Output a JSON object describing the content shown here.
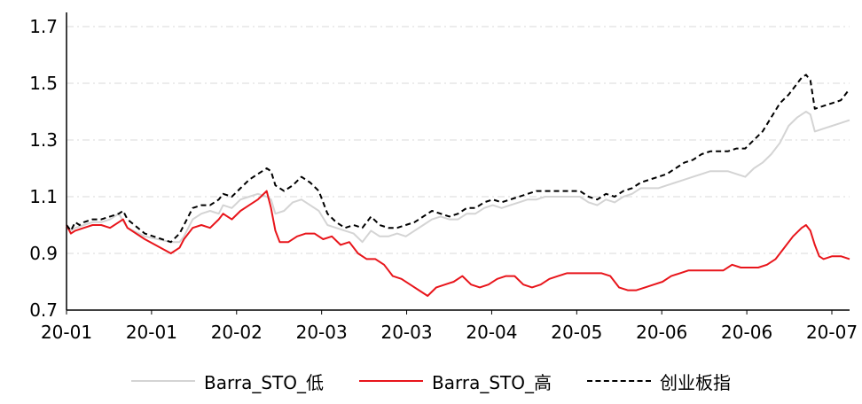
{
  "chart_data": {
    "type": "line",
    "title": "",
    "xlabel": "",
    "ylabel": "",
    "ylim": [
      0.7,
      1.75
    ],
    "yticks": [
      "0.7",
      "0.9",
      "1.1",
      "1.3",
      "1.5",
      "1.7"
    ],
    "xtick_labels": [
      "20-01",
      "20-01",
      "20-02",
      "20-03",
      "20-03",
      "20-04",
      "20-05",
      "20-06",
      "20-06",
      "20-07"
    ],
    "grid": "horizontal dash-dot",
    "legend_position": "bottom",
    "series": [
      {
        "name": "Barra_STO_低",
        "color": "#d4d4d4",
        "dash": "solid",
        "points": [
          [
            0,
            1.0
          ],
          [
            1,
            0.98
          ],
          [
            2,
            0.99
          ],
          [
            4,
            1.0
          ],
          [
            6,
            1.01
          ],
          [
            8,
            1.01
          ],
          [
            10,
            1.02
          ],
          [
            12,
            1.04
          ],
          [
            14,
            0.99
          ],
          [
            18,
            0.96
          ],
          [
            24,
            0.94
          ],
          [
            26,
            0.94
          ],
          [
            27,
            0.96
          ],
          [
            29,
            1.02
          ],
          [
            31,
            1.04
          ],
          [
            33,
            1.05
          ],
          [
            35,
            1.04
          ],
          [
            36,
            1.07
          ],
          [
            38,
            1.06
          ],
          [
            40,
            1.09
          ],
          [
            42,
            1.1
          ],
          [
            44,
            1.11
          ],
          [
            46,
            1.1
          ],
          [
            47,
            1.09
          ],
          [
            48,
            1.04
          ],
          [
            50,
            1.05
          ],
          [
            52,
            1.08
          ],
          [
            54,
            1.09
          ],
          [
            56,
            1.07
          ],
          [
            58,
            1.05
          ],
          [
            60,
            1.0
          ],
          [
            62,
            0.99
          ],
          [
            64,
            0.98
          ],
          [
            66,
            0.97
          ],
          [
            68,
            0.94
          ],
          [
            70,
            0.98
          ],
          [
            72,
            0.96
          ],
          [
            74,
            0.96
          ],
          [
            76,
            0.97
          ],
          [
            78,
            0.96
          ],
          [
            80,
            0.98
          ],
          [
            82,
            1.0
          ],
          [
            84,
            1.02
          ],
          [
            86,
            1.03
          ],
          [
            88,
            1.02
          ],
          [
            90,
            1.02
          ],
          [
            92,
            1.04
          ],
          [
            94,
            1.04
          ],
          [
            96,
            1.06
          ],
          [
            98,
            1.07
          ],
          [
            100,
            1.06
          ],
          [
            102,
            1.07
          ],
          [
            104,
            1.08
          ],
          [
            106,
            1.09
          ],
          [
            108,
            1.09
          ],
          [
            110,
            1.1
          ],
          [
            112,
            1.1
          ],
          [
            114,
            1.1
          ],
          [
            116,
            1.1
          ],
          [
            118,
            1.1
          ],
          [
            120,
            1.08
          ],
          [
            122,
            1.07
          ],
          [
            124,
            1.09
          ],
          [
            126,
            1.08
          ],
          [
            128,
            1.1
          ],
          [
            130,
            1.11
          ],
          [
            132,
            1.13
          ],
          [
            134,
            1.13
          ],
          [
            136,
            1.13
          ],
          [
            138,
            1.14
          ],
          [
            140,
            1.15
          ],
          [
            142,
            1.16
          ],
          [
            144,
            1.17
          ],
          [
            146,
            1.18
          ],
          [
            148,
            1.19
          ],
          [
            150,
            1.19
          ],
          [
            152,
            1.19
          ],
          [
            154,
            1.18
          ],
          [
            156,
            1.17
          ],
          [
            158,
            1.2
          ],
          [
            160,
            1.22
          ],
          [
            162,
            1.25
          ],
          [
            164,
            1.29
          ],
          [
            166,
            1.35
          ],
          [
            168,
            1.38
          ],
          [
            169,
            1.39
          ],
          [
            170,
            1.4
          ],
          [
            171,
            1.39
          ],
          [
            172,
            1.33
          ],
          [
            174,
            1.34
          ],
          [
            176,
            1.35
          ],
          [
            178,
            1.36
          ],
          [
            180,
            1.37
          ]
        ]
      },
      {
        "name": "Barra_STO_高",
        "color": "#e8151b",
        "dash": "solid",
        "points": [
          [
            0,
            1.0
          ],
          [
            1,
            0.97
          ],
          [
            2,
            0.98
          ],
          [
            4,
            0.99
          ],
          [
            6,
            1.0
          ],
          [
            8,
            1.0
          ],
          [
            10,
            0.99
          ],
          [
            12,
            1.01
          ],
          [
            13,
            1.02
          ],
          [
            14,
            0.99
          ],
          [
            18,
            0.95
          ],
          [
            24,
            0.9
          ],
          [
            26,
            0.92
          ],
          [
            27,
            0.95
          ],
          [
            29,
            0.99
          ],
          [
            31,
            1.0
          ],
          [
            33,
            0.99
          ],
          [
            35,
            1.02
          ],
          [
            36,
            1.04
          ],
          [
            38,
            1.02
          ],
          [
            40,
            1.05
          ],
          [
            42,
            1.07
          ],
          [
            44,
            1.09
          ],
          [
            46,
            1.12
          ],
          [
            47,
            1.06
          ],
          [
            48,
            0.98
          ],
          [
            49,
            0.94
          ],
          [
            51,
            0.94
          ],
          [
            53,
            0.96
          ],
          [
            55,
            0.97
          ],
          [
            57,
            0.97
          ],
          [
            59,
            0.95
          ],
          [
            61,
            0.96
          ],
          [
            63,
            0.93
          ],
          [
            65,
            0.94
          ],
          [
            67,
            0.9
          ],
          [
            69,
            0.88
          ],
          [
            71,
            0.88
          ],
          [
            73,
            0.86
          ],
          [
            74,
            0.84
          ],
          [
            75,
            0.82
          ],
          [
            77,
            0.81
          ],
          [
            79,
            0.79
          ],
          [
            81,
            0.77
          ],
          [
            83,
            0.75
          ],
          [
            85,
            0.78
          ],
          [
            87,
            0.79
          ],
          [
            89,
            0.8
          ],
          [
            91,
            0.82
          ],
          [
            93,
            0.79
          ],
          [
            95,
            0.78
          ],
          [
            97,
            0.79
          ],
          [
            99,
            0.81
          ],
          [
            101,
            0.82
          ],
          [
            103,
            0.82
          ],
          [
            105,
            0.79
          ],
          [
            107,
            0.78
          ],
          [
            109,
            0.79
          ],
          [
            111,
            0.81
          ],
          [
            113,
            0.82
          ],
          [
            115,
            0.83
          ],
          [
            117,
            0.83
          ],
          [
            119,
            0.83
          ],
          [
            121,
            0.83
          ],
          [
            123,
            0.83
          ],
          [
            125,
            0.82
          ],
          [
            127,
            0.78
          ],
          [
            129,
            0.77
          ],
          [
            131,
            0.77
          ],
          [
            133,
            0.78
          ],
          [
            135,
            0.79
          ],
          [
            137,
            0.8
          ],
          [
            139,
            0.82
          ],
          [
            141,
            0.83
          ],
          [
            143,
            0.84
          ],
          [
            145,
            0.84
          ],
          [
            147,
            0.84
          ],
          [
            149,
            0.84
          ],
          [
            151,
            0.84
          ],
          [
            153,
            0.86
          ],
          [
            155,
            0.85
          ],
          [
            157,
            0.85
          ],
          [
            159,
            0.85
          ],
          [
            161,
            0.86
          ],
          [
            163,
            0.88
          ],
          [
            165,
            0.92
          ],
          [
            167,
            0.96
          ],
          [
            169,
            0.99
          ],
          [
            170,
            1.0
          ],
          [
            171,
            0.98
          ],
          [
            172,
            0.93
          ],
          [
            173,
            0.89
          ],
          [
            174,
            0.88
          ],
          [
            176,
            0.89
          ],
          [
            178,
            0.89
          ],
          [
            180,
            0.88
          ]
        ]
      },
      {
        "name": "创业板指",
        "color": "#000000",
        "dash": "dashed",
        "points": [
          [
            0,
            1.0
          ],
          [
            1,
            0.98
          ],
          [
            2,
            1.01
          ],
          [
            3,
            1.0
          ],
          [
            4,
            1.01
          ],
          [
            6,
            1.02
          ],
          [
            8,
            1.02
          ],
          [
            10,
            1.03
          ],
          [
            12,
            1.04
          ],
          [
            13,
            1.05
          ],
          [
            14,
            1.02
          ],
          [
            18,
            0.97
          ],
          [
            24,
            0.94
          ],
          [
            26,
            0.97
          ],
          [
            27,
            1.0
          ],
          [
            29,
            1.06
          ],
          [
            31,
            1.07
          ],
          [
            33,
            1.07
          ],
          [
            35,
            1.09
          ],
          [
            36,
            1.11
          ],
          [
            38,
            1.1
          ],
          [
            40,
            1.13
          ],
          [
            42,
            1.16
          ],
          [
            44,
            1.18
          ],
          [
            46,
            1.2
          ],
          [
            47,
            1.19
          ],
          [
            48,
            1.14
          ],
          [
            50,
            1.12
          ],
          [
            52,
            1.14
          ],
          [
            54,
            1.17
          ],
          [
            56,
            1.15
          ],
          [
            58,
            1.12
          ],
          [
            60,
            1.04
          ],
          [
            62,
            1.01
          ],
          [
            64,
            0.99
          ],
          [
            66,
            1.0
          ],
          [
            68,
            0.99
          ],
          [
            70,
            1.03
          ],
          [
            72,
            1.0
          ],
          [
            74,
            0.99
          ],
          [
            76,
            0.99
          ],
          [
            78,
            1.0
          ],
          [
            80,
            1.01
          ],
          [
            82,
            1.03
          ],
          [
            84,
            1.05
          ],
          [
            86,
            1.04
          ],
          [
            88,
            1.03
          ],
          [
            90,
            1.04
          ],
          [
            92,
            1.06
          ],
          [
            94,
            1.06
          ],
          [
            96,
            1.08
          ],
          [
            98,
            1.09
          ],
          [
            100,
            1.08
          ],
          [
            102,
            1.09
          ],
          [
            104,
            1.1
          ],
          [
            106,
            1.11
          ],
          [
            108,
            1.12
          ],
          [
            110,
            1.12
          ],
          [
            112,
            1.12
          ],
          [
            114,
            1.12
          ],
          [
            116,
            1.12
          ],
          [
            118,
            1.12
          ],
          [
            120,
            1.1
          ],
          [
            122,
            1.09
          ],
          [
            124,
            1.11
          ],
          [
            126,
            1.1
          ],
          [
            128,
            1.12
          ],
          [
            130,
            1.13
          ],
          [
            132,
            1.15
          ],
          [
            134,
            1.16
          ],
          [
            136,
            1.17
          ],
          [
            138,
            1.18
          ],
          [
            140,
            1.2
          ],
          [
            142,
            1.22
          ],
          [
            144,
            1.23
          ],
          [
            146,
            1.25
          ],
          [
            148,
            1.26
          ],
          [
            150,
            1.26
          ],
          [
            152,
            1.26
          ],
          [
            154,
            1.27
          ],
          [
            156,
            1.27
          ],
          [
            158,
            1.3
          ],
          [
            160,
            1.33
          ],
          [
            162,
            1.38
          ],
          [
            164,
            1.43
          ],
          [
            166,
            1.46
          ],
          [
            168,
            1.5
          ],
          [
            169,
            1.52
          ],
          [
            170,
            1.53
          ],
          [
            171,
            1.51
          ],
          [
            172,
            1.41
          ],
          [
            174,
            1.42
          ],
          [
            176,
            1.43
          ],
          [
            178,
            1.44
          ],
          [
            180,
            1.48
          ]
        ]
      }
    ]
  }
}
